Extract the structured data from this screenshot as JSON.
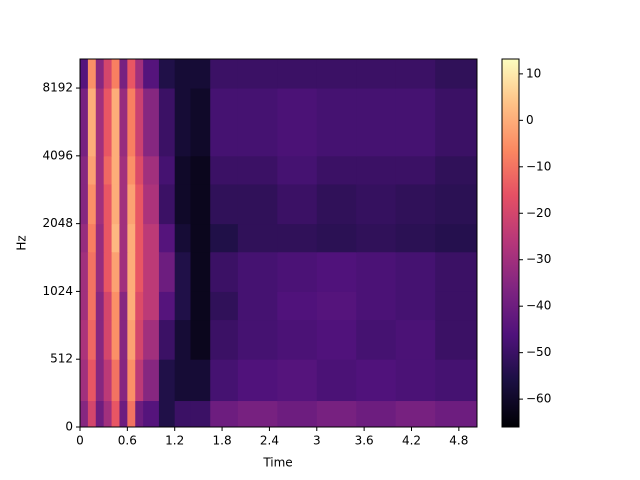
{
  "chart_data": {
    "type": "heatmap",
    "xlabel": "Time",
    "ylabel": "Hz",
    "xbins": [
      0,
      0.1,
      0.2,
      0.3,
      0.4,
      0.5,
      0.6,
      0.7,
      0.8,
      1.0,
      1.2,
      1.4,
      1.65,
      2.0,
      2.5,
      3.0,
      3.5,
      4.0,
      4.5,
      5.03
    ],
    "ybins": [
      0,
      200,
      512,
      768,
      1024,
      1536,
      2048,
      3072,
      4096,
      8192,
      11025
    ],
    "values": [
      [
        -35,
        -20,
        -40,
        -30,
        -15,
        -40,
        -10,
        -40,
        -45,
        -55,
        -50,
        -50,
        -40,
        -38,
        -40,
        -38,
        -40,
        -38,
        -40
      ],
      [
        -30,
        -15,
        -35,
        -25,
        -10,
        -35,
        -5,
        -25,
        -35,
        -55,
        -58,
        -58,
        -48,
        -46,
        -45,
        -47,
        -46,
        -47,
        -48
      ],
      [
        -28,
        -12,
        -35,
        -20,
        -5,
        -35,
        -2,
        -20,
        -30,
        -50,
        -58,
        -62,
        -50,
        -48,
        -47,
        -46,
        -48,
        -47,
        -50
      ],
      [
        -30,
        -10,
        -35,
        -20,
        -5,
        -35,
        0,
        -18,
        -25,
        -45,
        -55,
        -62,
        -52,
        -48,
        -46,
        -45,
        -47,
        -48,
        -50
      ],
      [
        -30,
        -10,
        -32,
        -15,
        -2,
        -30,
        0,
        -15,
        -25,
        -40,
        -55,
        -62,
        -50,
        -48,
        -47,
        -46,
        -47,
        -48,
        -50
      ],
      [
        -32,
        -8,
        -32,
        -15,
        2,
        -30,
        0,
        -15,
        -25,
        -45,
        -58,
        -62,
        -55,
        -52,
        -52,
        -53,
        -52,
        -53,
        -54
      ],
      [
        -35,
        -5,
        -30,
        -15,
        0,
        -30,
        -2,
        -15,
        -28,
        -50,
        -60,
        -62,
        -52,
        -52,
        -50,
        -52,
        -51,
        -52,
        -53
      ],
      [
        -35,
        -2,
        -30,
        -12,
        0,
        -30,
        -5,
        -18,
        -30,
        -48,
        -60,
        -62,
        -50,
        -50,
        -48,
        -50,
        -50,
        -50,
        -52
      ],
      [
        -38,
        0,
        -30,
        -15,
        0,
        -32,
        -8,
        -22,
        -35,
        -50,
        -58,
        -60,
        -48,
        -48,
        -47,
        -48,
        -48,
        -48,
        -50
      ],
      [
        -45,
        -5,
        -35,
        -20,
        -8,
        -38,
        -15,
        -30,
        -45,
        -55,
        -58,
        -58,
        -50,
        -50,
        -50,
        -50,
        -50,
        -50,
        -52
      ]
    ],
    "xlim": [
      0,
      5.03
    ],
    "xticks": [
      0,
      0.6,
      1.2,
      1.8,
      2.4,
      3,
      3.6,
      4.2,
      4.8
    ],
    "ylim": [
      0,
      11025
    ],
    "yscale": "symlog",
    "ylinthresh": 512,
    "yticks": [
      0,
      512,
      1024,
      2048,
      4096,
      8192
    ],
    "colormap": "magma",
    "clim": [
      -66,
      13.2
    ],
    "cticks": [
      {
        "value": 10,
        "label": "10"
      },
      {
        "value": 0,
        "label": "0"
      },
      {
        "value": -10,
        "label": "−10"
      },
      {
        "value": -20,
        "label": "−20"
      },
      {
        "value": -30,
        "label": "−30"
      },
      {
        "value": -40,
        "label": "−40"
      },
      {
        "value": -50,
        "label": "−50"
      },
      {
        "value": -60,
        "label": "−60"
      }
    ]
  }
}
